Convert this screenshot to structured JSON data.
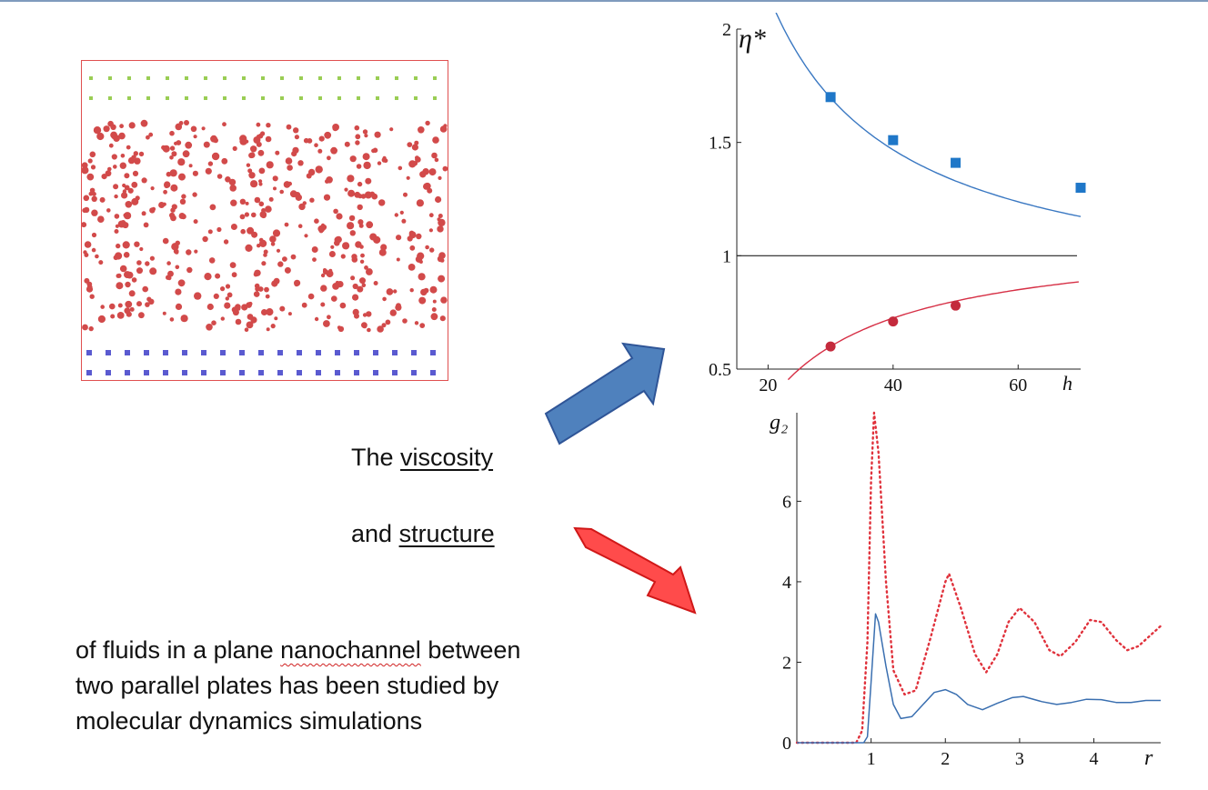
{
  "slide_text": {
    "line1_prefix": "The ",
    "line1_link": "viscosity",
    "line2_prefix": "and ",
    "line2_link": "structure",
    "para_l1_a": "of fluids in a plane ",
    "para_l1_b": "nanochannel",
    "para_l1_c": " between",
    "para_l2": "two parallel plates has been studied by",
    "para_l3": "molecular dynamics simulations"
  },
  "colors": {
    "arrow_blue": "#4f81bd",
    "arrow_red": "#ff4b4b",
    "curve_blue": "#3a78c2",
    "curve_red": "#d62f45",
    "particles": "#d24a4a",
    "wall_top": "#9acd54",
    "wall_bottom": "#5a5ad0"
  },
  "chart_data": [
    {
      "type": "scatter",
      "title": "",
      "ylabel": "η*",
      "xlabel": "h",
      "x_ticks": [
        "20",
        "40",
        "60"
      ],
      "y_ticks": [
        "0.5",
        "1",
        "1.5",
        "2"
      ],
      "xlim": [
        15,
        70
      ],
      "ylim": [
        0.5,
        2
      ],
      "reference_line": 1,
      "series": [
        {
          "marker": "square",
          "color": "#1f77c8",
          "x": [
            30,
            40,
            50,
            70
          ],
          "y": [
            1.7,
            1.51,
            1.41,
            1.3
          ],
          "fit": "decreasing"
        },
        {
          "marker": "circle",
          "color": "#c42a3c",
          "x": [
            30,
            40,
            50
          ],
          "y": [
            0.6,
            0.71,
            0.78
          ],
          "fit": "increasing"
        }
      ]
    },
    {
      "type": "line",
      "title": "",
      "ylabel": "g₂",
      "xlabel": "r",
      "x_ticks": [
        "1",
        "2",
        "3",
        "4"
      ],
      "y_ticks": [
        "0",
        "2",
        "4",
        "6"
      ],
      "xlim": [
        0,
        4.9
      ],
      "ylim": [
        0,
        8.2
      ],
      "series": [
        {
          "style": "dotted",
          "color": "#e0323c",
          "x": [
            0,
            0.8,
            0.88,
            0.95,
            1.0,
            1.04,
            1.1,
            1.2,
            1.3,
            1.45,
            1.6,
            1.8,
            2.0,
            2.05,
            2.2,
            2.4,
            2.55,
            2.7,
            2.85,
            3.0,
            3.2,
            3.4,
            3.55,
            3.75,
            3.95,
            4.1,
            4.3,
            4.45,
            4.6,
            4.9
          ],
          "y": [
            0,
            0,
            0.3,
            2.5,
            6.5,
            8.2,
            7.2,
            4.0,
            1.8,
            1.2,
            1.3,
            2.6,
            4.0,
            4.2,
            3.4,
            2.2,
            1.75,
            2.2,
            3.0,
            3.35,
            3.0,
            2.3,
            2.15,
            2.5,
            3.05,
            3.0,
            2.55,
            2.3,
            2.4,
            2.9
          ]
        },
        {
          "style": "solid",
          "color": "#3a6fb0",
          "x": [
            0,
            0.9,
            0.95,
            1.0,
            1.06,
            1.1,
            1.2,
            1.3,
            1.4,
            1.55,
            1.7,
            1.85,
            2.0,
            2.15,
            2.3,
            2.5,
            2.7,
            2.9,
            3.05,
            3.3,
            3.5,
            3.7,
            3.9,
            4.1,
            4.3,
            4.5,
            4.7,
            4.9
          ],
          "y": [
            0,
            0,
            0.15,
            1.5,
            3.2,
            3.0,
            1.9,
            0.95,
            0.6,
            0.65,
            0.95,
            1.25,
            1.32,
            1.2,
            0.95,
            0.82,
            0.98,
            1.12,
            1.15,
            1.02,
            0.95,
            1.0,
            1.08,
            1.07,
            1.0,
            1.0,
            1.05,
            1.05
          ]
        }
      ]
    }
  ]
}
